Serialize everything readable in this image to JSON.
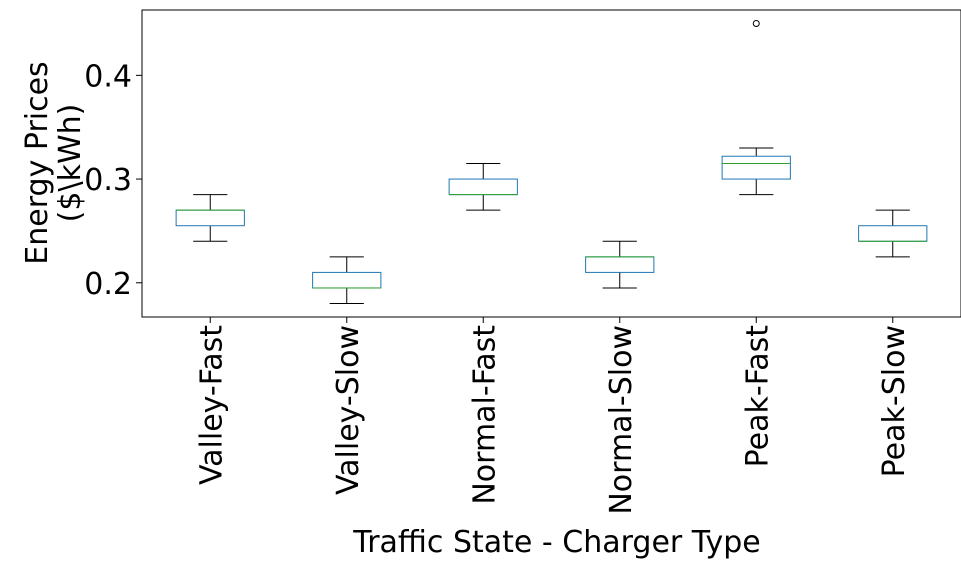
{
  "chart_data": {
    "type": "box",
    "xlabel": "Traffic State - Charger Type",
    "ylabel_lines": [
      "Energy Prices",
      "($\\kWh)"
    ],
    "categories": [
      "Valley-Fast",
      "Valley-Slow",
      "Normal-Fast",
      "Normal-Slow",
      "Peak-Fast",
      "Peak-Slow"
    ],
    "ylim": [
      0.167,
      0.463
    ],
    "yticks": [
      {
        "value": 0.2,
        "label": "0.2"
      },
      {
        "value": 0.3,
        "label": "0.3"
      },
      {
        "value": 0.4,
        "label": "0.4"
      }
    ],
    "grid": false,
    "series": [
      {
        "whislo": 0.24,
        "q1": 0.255,
        "med": 0.27,
        "q3": 0.27,
        "whishi": 0.285,
        "fliers": []
      },
      {
        "whislo": 0.18,
        "q1": 0.195,
        "med": 0.195,
        "q3": 0.21,
        "whishi": 0.225,
        "fliers": []
      },
      {
        "whislo": 0.27,
        "q1": 0.285,
        "med": 0.285,
        "q3": 0.3,
        "whishi": 0.315,
        "fliers": []
      },
      {
        "whislo": 0.195,
        "q1": 0.21,
        "med": 0.225,
        "q3": 0.225,
        "whishi": 0.24,
        "fliers": []
      },
      {
        "whislo": 0.285,
        "q1": 0.3,
        "med": 0.315,
        "q3": 0.322,
        "whishi": 0.33,
        "fliers": [
          0.45
        ]
      },
      {
        "whislo": 0.225,
        "q1": 0.24,
        "med": 0.24,
        "q3": 0.255,
        "whishi": 0.27,
        "fliers": []
      }
    ],
    "colors": {
      "box": "#1f77b4",
      "median": "#2ca02c",
      "whisker": "#000000",
      "flier": "#000000",
      "axis": "#000000"
    }
  }
}
